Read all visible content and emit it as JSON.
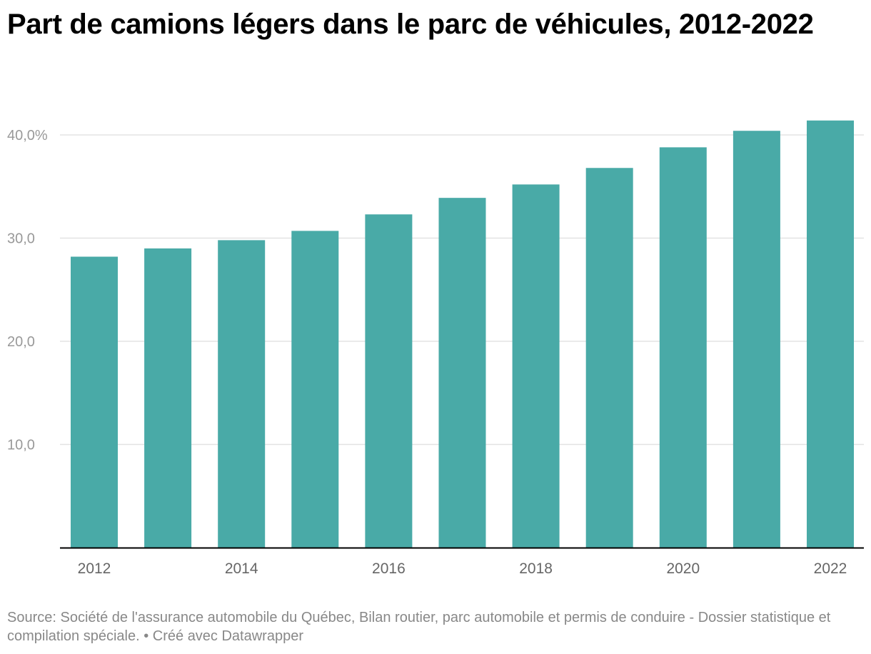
{
  "title": "Part de camions légers dans le parc de véhicules, 2012-2022",
  "footer": {
    "source": "Source: Société de l'assurance automobile du Québec, Bilan routier, parc automobile et permis de conduire - Dossier statistique et compilation spéciale.",
    "separator": " • ",
    "credit": "Créé avec Datawrapper"
  },
  "colors": {
    "bar": "#49aaa7",
    "grid": "#e3e3e3",
    "axis": "#000000",
    "tick_text": "#999999",
    "x_tick_text": "#666666"
  },
  "chart_data": {
    "type": "bar",
    "x": [
      2012,
      2013,
      2014,
      2015,
      2016,
      2017,
      2018,
      2019,
      2020,
      2021,
      2022
    ],
    "values": [
      28.2,
      29.0,
      29.8,
      30.7,
      32.3,
      33.9,
      35.2,
      36.8,
      38.8,
      40.4,
      41.4
    ],
    "ylim": [
      0,
      40
    ],
    "y_ticks": [
      {
        "value": 10,
        "label": "10,0"
      },
      {
        "value": 20,
        "label": "20,0"
      },
      {
        "value": 30,
        "label": "30,0"
      },
      {
        "value": 40,
        "label": "40,0%"
      }
    ],
    "x_tick_labels": [
      "2012",
      "2014",
      "2016",
      "2018",
      "2020",
      "2022"
    ],
    "grid": true,
    "legend": false
  }
}
